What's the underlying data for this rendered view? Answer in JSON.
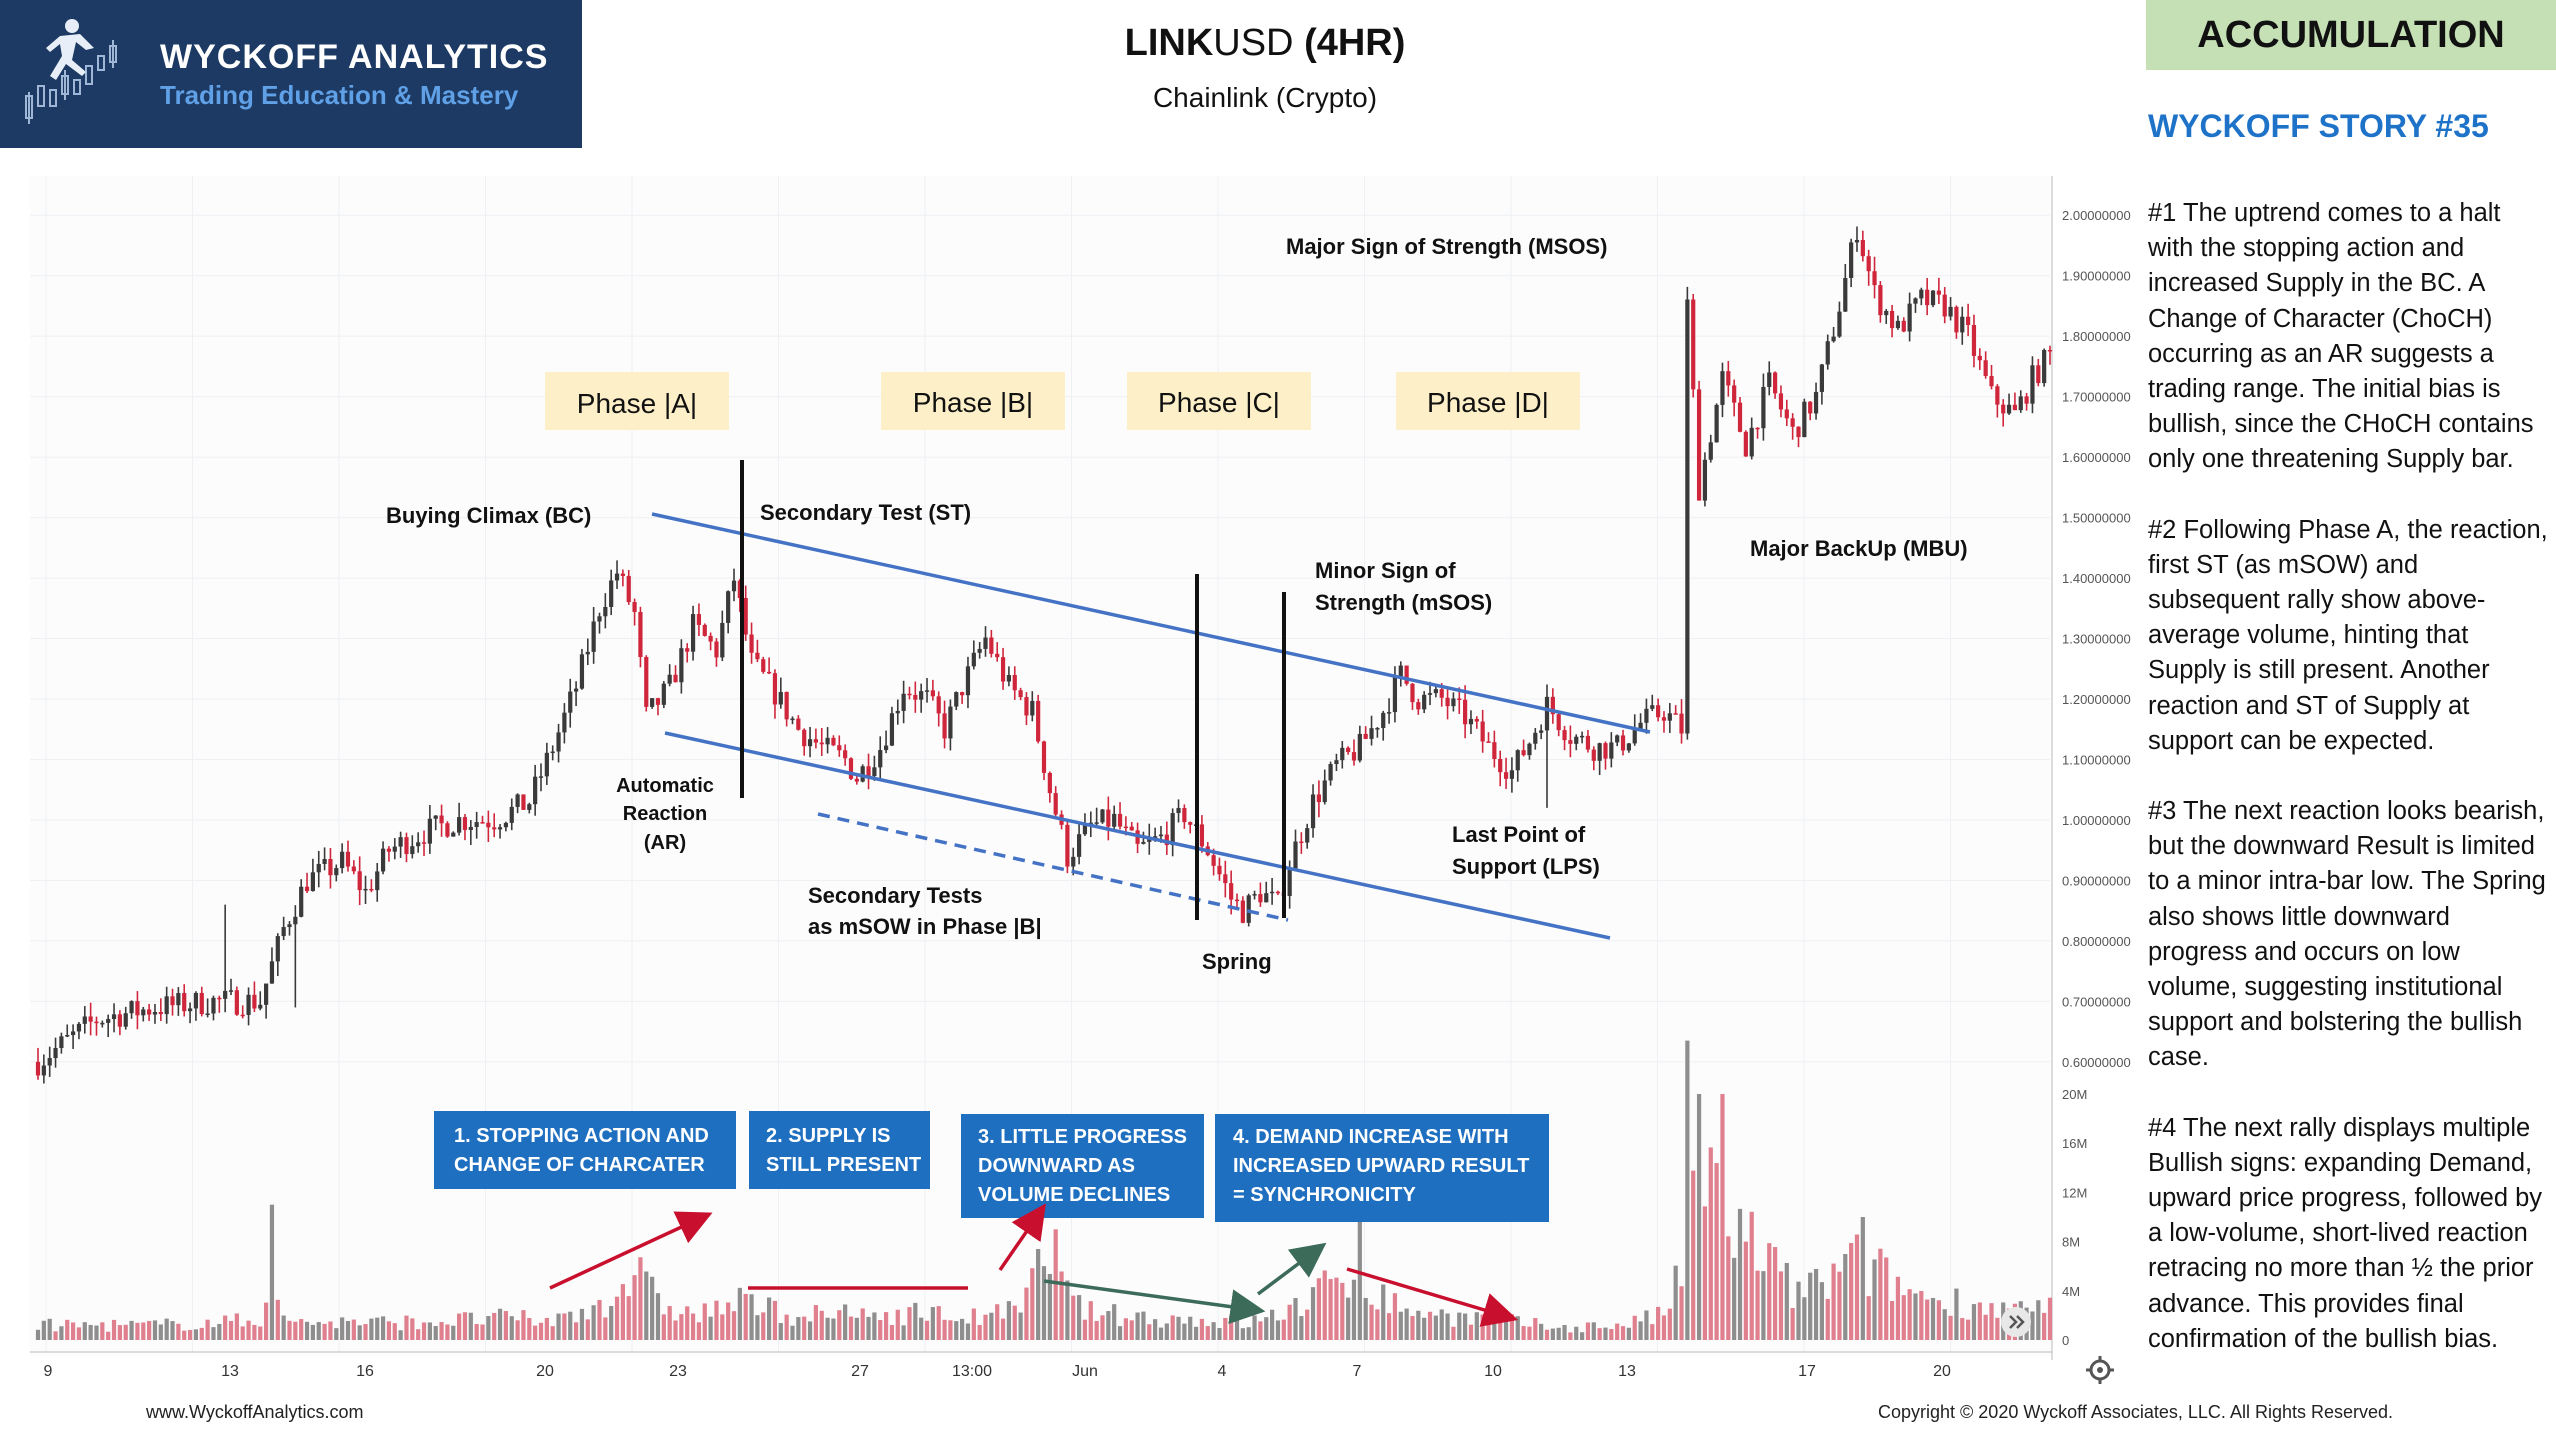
{
  "logo": {
    "brand": "WYCKOFF ANALYTICS",
    "tagline": "Trading Education & Mastery"
  },
  "header": {
    "title_symbol": "LINK",
    "title_quote": "USD",
    "title_timeframe": "(4HR)",
    "subtitle": "Chainlink (Crypto)"
  },
  "badge": "ACCUMULATION",
  "story": {
    "title": "WYCKOFF STORY #35",
    "paragraphs": [
      "#1 The uptrend comes to a halt with the stopping action and increased Supply in the BC. A Change of Character (ChoCH) occurring as an AR suggests a trading range. The initial bias is bullish, since the CHoCH contains only one threatening Supply bar.",
      "#2 Following Phase A, the reaction, first ST (as mSOW) and subsequent rally show above-average volume, hinting that Supply is still present. Another reaction and ST of Supply at support can be expected.",
      "#3 The next reaction looks bearish, but the downward Result is limited to a minor intra-bar low. The Spring also shows little downward progress and occurs on low volume, suggesting institutional support and bolstering the bullish case.",
      "#4 The next rally displays multiple Bullish signs: expanding Demand, upward price progress, followed by a low-volume, short-lived reaction retracing no more than ½ the prior advance. This provides final confirmation of the bullish bias."
    ]
  },
  "footer": {
    "website": "www.WyckoffAnalytics.com",
    "copyright": "Copyright © 2020 Wyckoff Associates, LLC. All Rights Reserved."
  },
  "colors": {
    "brand_navy": "#1c3a64",
    "brand_blue": "#5fa0e6",
    "story_blue": "#1e73c8",
    "accumulation_green": "#c5e0b4",
    "phase_fill": "#fdf0c8",
    "box_blue": "#1f6fc0",
    "channel_blue": "#4472c4",
    "candle_up": "#3a3a3a",
    "candle_down": "#d0263c",
    "arrow_red": "#c8102e",
    "arrow_green": "#3c6b5a"
  },
  "chart_data": {
    "type": "candlestick",
    "x_ticks": [
      "9",
      "13",
      "16",
      "20",
      "23",
      "27",
      "13:00",
      "Jun",
      "4",
      "7",
      "10",
      "13",
      "17",
      "20"
    ],
    "price_axis": {
      "ticks": [
        "0.60000000",
        "0.70000000",
        "0.80000000",
        "0.90000000",
        "1.00000000",
        "1.10000000",
        "1.20000000",
        "1.30000000",
        "1.40000000",
        "1.50000000",
        "1.60000000",
        "1.70000000",
        "1.80000000",
        "1.90000000",
        "2.00000000"
      ],
      "range": [
        0.57,
        2.05
      ]
    },
    "volume_axis": {
      "ticks": [
        "0",
        "4M",
        "8M",
        "12M",
        "16M",
        "20M"
      ],
      "range": [
        0,
        20
      ]
    },
    "price_anchors": [
      [
        0,
        0.6
      ],
      [
        10,
        0.67
      ],
      [
        20,
        0.69
      ],
      [
        30,
        0.7
      ],
      [
        38,
        0.7
      ],
      [
        42,
        0.82
      ],
      [
        46,
        0.9
      ],
      [
        52,
        0.93
      ],
      [
        56,
        0.88
      ],
      [
        60,
        0.95
      ],
      [
        66,
        0.98
      ],
      [
        72,
        1.0
      ],
      [
        78,
        1.0
      ],
      [
        84,
        1.03
      ],
      [
        88,
        1.12
      ],
      [
        92,
        1.22
      ],
      [
        96,
        1.35
      ],
      [
        99,
        1.41
      ],
      [
        102,
        1.34
      ],
      [
        104,
        1.17
      ],
      [
        108,
        1.22
      ],
      [
        112,
        1.32
      ],
      [
        116,
        1.28
      ],
      [
        119,
        1.4
      ],
      [
        122,
        1.26
      ],
      [
        126,
        1.21
      ],
      [
        130,
        1.15
      ],
      [
        134,
        1.12
      ],
      [
        138,
        1.1
      ],
      [
        140,
        1.07
      ],
      [
        144,
        1.12
      ],
      [
        148,
        1.22
      ],
      [
        152,
        1.2
      ],
      [
        155,
        1.15
      ],
      [
        158,
        1.22
      ],
      [
        162,
        1.3
      ],
      [
        166,
        1.22
      ],
      [
        170,
        1.18
      ],
      [
        173,
        1.05
      ],
      [
        176,
        0.94
      ],
      [
        180,
        0.99
      ],
      [
        184,
        1.0
      ],
      [
        188,
        0.95
      ],
      [
        192,
        0.97
      ],
      [
        196,
        1.01
      ],
      [
        200,
        0.95
      ],
      [
        204,
        0.87
      ],
      [
        206,
        0.85
      ],
      [
        209,
        0.88
      ],
      [
        212,
        0.86
      ],
      [
        214,
        0.93
      ],
      [
        218,
        1.03
      ],
      [
        222,
        1.09
      ],
      [
        226,
        1.12
      ],
      [
        230,
        1.18
      ],
      [
        233,
        1.24
      ],
      [
        236,
        1.2
      ],
      [
        240,
        1.2
      ],
      [
        244,
        1.17
      ],
      [
        248,
        1.12
      ],
      [
        252,
        1.08
      ],
      [
        255,
        1.13
      ],
      [
        258,
        1.19
      ],
      [
        262,
        1.14
      ],
      [
        266,
        1.12
      ],
      [
        270,
        1.12
      ],
      [
        274,
        1.16
      ],
      [
        278,
        1.18
      ],
      [
        281,
        1.15
      ],
      [
        282,
        1.85
      ],
      [
        284,
        1.55
      ],
      [
        288,
        1.73
      ],
      [
        292,
        1.62
      ],
      [
        296,
        1.72
      ],
      [
        300,
        1.64
      ],
      [
        304,
        1.7
      ],
      [
        308,
        1.85
      ],
      [
        311,
        1.98
      ],
      [
        314,
        1.87
      ],
      [
        318,
        1.81
      ],
      [
        322,
        1.86
      ],
      [
        326,
        1.85
      ],
      [
        330,
        1.8
      ],
      [
        334,
        1.7
      ],
      [
        338,
        1.67
      ],
      [
        341,
        1.73
      ],
      [
        344,
        1.77
      ]
    ],
    "volume_anchors": [
      [
        0,
        1.2
      ],
      [
        20,
        1.2
      ],
      [
        38,
        1.6
      ],
      [
        40,
        5.0
      ],
      [
        42,
        1.5
      ],
      [
        60,
        1.4
      ],
      [
        72,
        1.6
      ],
      [
        80,
        1.8
      ],
      [
        88,
        1.5
      ],
      [
        94,
        2.5
      ],
      [
        98,
        3.5
      ],
      [
        102,
        5.5
      ],
      [
        106,
        3.0
      ],
      [
        112,
        2.0
      ],
      [
        120,
        3.0
      ],
      [
        130,
        2.0
      ],
      [
        140,
        2.0
      ],
      [
        150,
        2.2
      ],
      [
        160,
        1.8
      ],
      [
        168,
        2.4
      ],
      [
        172,
        6.5
      ],
      [
        176,
        3.5
      ],
      [
        180,
        2.2
      ],
      [
        190,
        1.8
      ],
      [
        200,
        1.6
      ],
      [
        206,
        1.3
      ],
      [
        212,
        2.0
      ],
      [
        216,
        3.0
      ],
      [
        220,
        4.0
      ],
      [
        224,
        5.0
      ],
      [
        226,
        7.0
      ],
      [
        228,
        4.0
      ],
      [
        232,
        2.8
      ],
      [
        240,
        2.0
      ],
      [
        250,
        1.6
      ],
      [
        260,
        1.0
      ],
      [
        270,
        1.2
      ],
      [
        278,
        2.0
      ],
      [
        281,
        6.0
      ],
      [
        282,
        17.0
      ],
      [
        284,
        14.0
      ],
      [
        288,
        10.0
      ],
      [
        292,
        9.0
      ],
      [
        296,
        6.0
      ],
      [
        300,
        4.0
      ],
      [
        306,
        4.5
      ],
      [
        310,
        6.5
      ],
      [
        316,
        5.0
      ],
      [
        322,
        3.5
      ],
      [
        330,
        3.0
      ],
      [
        338,
        2.4
      ],
      [
        344,
        2.4
      ]
    ],
    "spikes": {
      "price": [
        [
          32,
          0.86
        ],
        [
          44,
          0.69
        ],
        [
          258,
          1.02
        ],
        [
          262,
          1.11
        ]
      ],
      "volume": [
        [
          40,
          11
        ],
        [
          284,
          20
        ],
        [
          288,
          20
        ],
        [
          312,
          10
        ],
        [
          174,
          9
        ],
        [
          226,
          12
        ],
        [
          292,
          8
        ]
      ]
    },
    "phases": [
      "Phase |A|",
      "Phase |B|",
      "Phase |C|",
      "Phase |D|"
    ],
    "labels": {
      "bc": "Buying Climax (BC)",
      "st": "Secondary Test (ST)",
      "ar": [
        "Automatic",
        "Reaction",
        "(AR)"
      ],
      "st_msow": [
        "Secondary Tests",
        "as mSOW in Phase |B|"
      ],
      "spring": "Spring",
      "msos_minor": [
        "Minor Sign of",
        "Strength (mSOS)"
      ],
      "lps": [
        "Last Point of",
        "Support (LPS)"
      ],
      "msos_major": "Major Sign of Strength (MSOS)",
      "mbu": "Major  BackUp (MBU)"
    },
    "boxes": [
      [
        "1. STOPPING ACTION AND",
        "CHANGE OF CHARCATER"
      ],
      [
        "2. SUPPLY IS",
        "STILL PRESENT"
      ],
      [
        "3. LITTLE PROGRESS",
        "DOWNWARD AS",
        "VOLUME DECLINES"
      ],
      [
        "4. DEMAND INCREASE WITH",
        "INCREASED UPWARD RESULT",
        "= SYNCHRONICITY"
      ]
    ]
  }
}
